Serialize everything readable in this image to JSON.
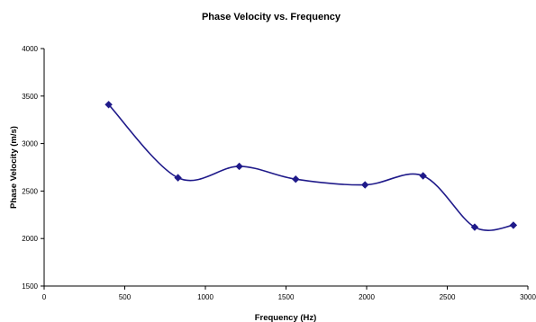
{
  "chart_data": {
    "type": "line",
    "title": "Phase Velocity vs. Frequency",
    "xlabel": "Frequency (Hz)",
    "ylabel": "Phase Velocity (m/s)",
    "xlim": [
      0,
      3000
    ],
    "ylim": [
      1500,
      4000
    ],
    "x_ticks": [
      0,
      500,
      1000,
      1500,
      2000,
      2500,
      3000
    ],
    "x_tick_labels": [
      "0",
      "500",
      "1000",
      "1500",
      "2000",
      "2500",
      "3000"
    ],
    "y_ticks": [
      1500,
      2000,
      2500,
      3000,
      3500,
      4000
    ],
    "y_tick_labels": [
      "1500",
      "2000",
      "2500",
      "3000",
      "3500",
      "4000"
    ],
    "grid": false,
    "legend": false,
    "smoothed": true,
    "marker": "diamond",
    "series": [
      {
        "color": "#1f1a8a",
        "points": [
          {
            "x": 400,
            "y": 3410
          },
          {
            "x": 830,
            "y": 2640
          },
          {
            "x": 1210,
            "y": 2760
          },
          {
            "x": 1560,
            "y": 2625
          },
          {
            "x": 1990,
            "y": 2565
          },
          {
            "x": 2350,
            "y": 2660
          },
          {
            "x": 2670,
            "y": 2120
          },
          {
            "x": 2910,
            "y": 2140
          }
        ]
      }
    ]
  }
}
